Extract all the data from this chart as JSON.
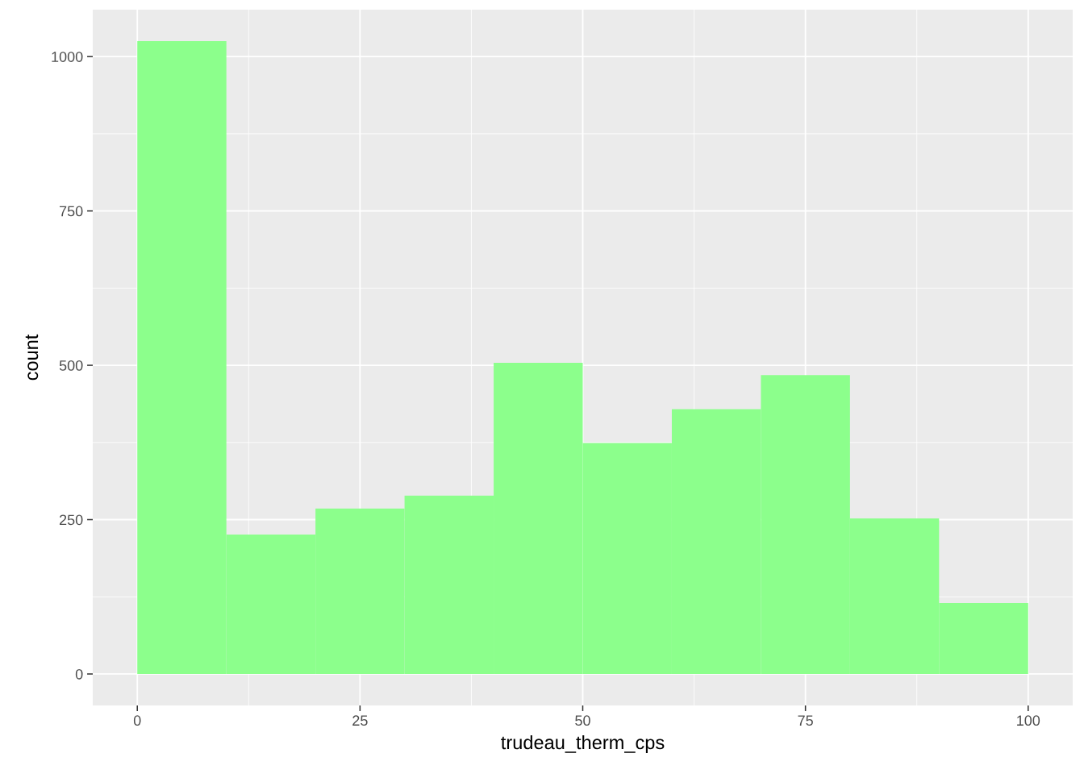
{
  "chart_data": {
    "type": "histogram",
    "xlabel": "trudeau_therm_cps",
    "ylabel": "count",
    "bins": [
      0,
      10,
      20,
      30,
      40,
      50,
      60,
      70,
      80,
      90,
      100
    ],
    "values": [
      1025,
      226,
      268,
      289,
      504,
      374,
      429,
      484,
      252,
      115
    ],
    "color": "#8cff8c",
    "xlim": [
      -5,
      105
    ],
    "xticks": [
      0,
      25,
      50,
      75,
      100
    ],
    "ylim": [
      -51,
      1076
    ],
    "yticks": [
      0,
      250,
      500,
      750,
      1000
    ],
    "grid": true,
    "legend": false
  }
}
